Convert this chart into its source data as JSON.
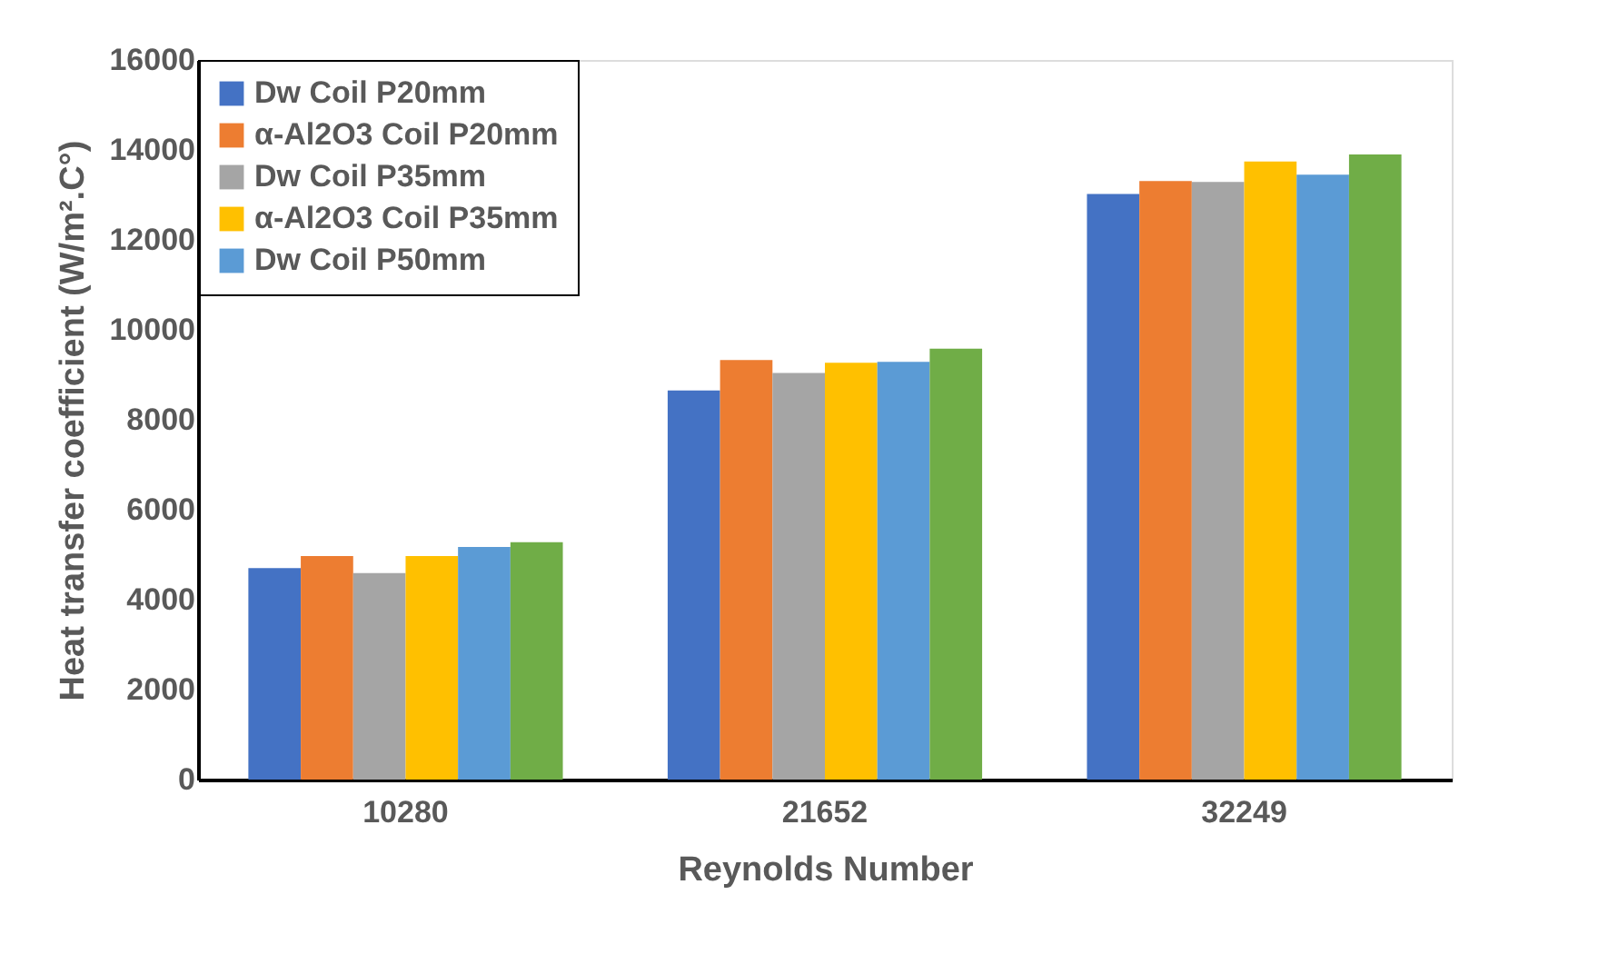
{
  "chart_data": {
    "type": "bar",
    "xlabel": "Reynolds Number",
    "ylabel": "Heat transfer coefficient (W/m².C°)",
    "categories": [
      "10280",
      "21652",
      "32249"
    ],
    "series": [
      {
        "name": "Dw Coil P20mm",
        "color": "#4472c4",
        "values": [
          4700,
          8650,
          13020
        ]
      },
      {
        "name": "α-Al2O3 Coil P20mm",
        "color": "#ed7d31",
        "values": [
          4970,
          9330,
          13310
        ]
      },
      {
        "name": "Dw Coil P35mm",
        "color": "#a5a5a5",
        "values": [
          4590,
          9040,
          13290
        ]
      },
      {
        "name": "α-Al2O3 Coil P35mm",
        "color": "#ffc000",
        "values": [
          4970,
          9270,
          13740
        ]
      },
      {
        "name": "Dw Coil P50mm",
        "color": "#5b9bd5",
        "values": [
          5170,
          9290,
          13450
        ]
      },
      {
        "color": "#70ad47",
        "values": [
          5280,
          9580,
          13900
        ]
      }
    ],
    "ylim": [
      0,
      16000
    ],
    "yticks": [
      0,
      2000,
      4000,
      6000,
      8000,
      10000,
      12000,
      14000,
      16000
    ],
    "grid": false,
    "legend": "top left"
  }
}
